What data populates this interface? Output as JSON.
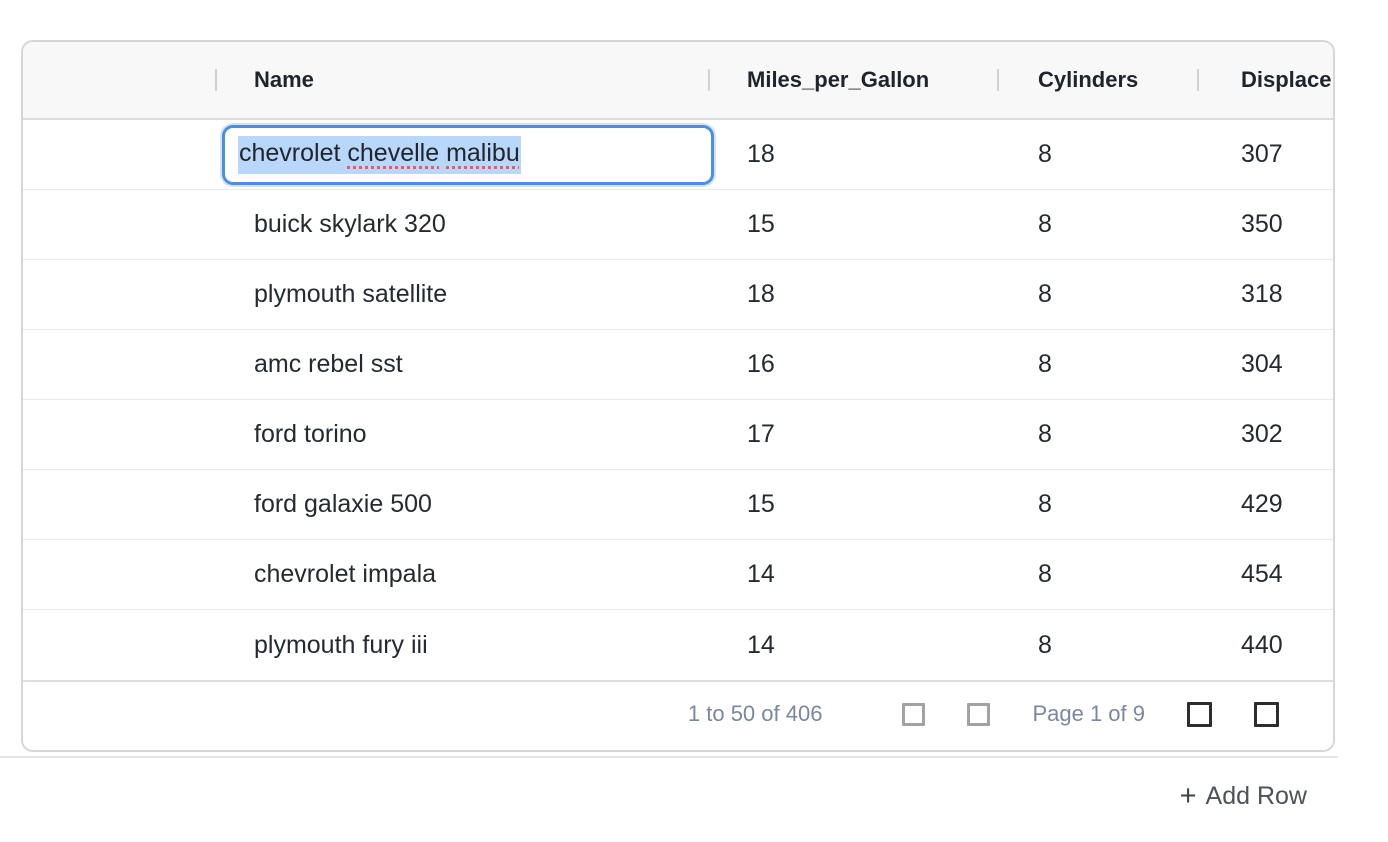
{
  "grid": {
    "columns": [
      {
        "label": ""
      },
      {
        "label": "Name"
      },
      {
        "label": "Miles_per_Gallon"
      },
      {
        "label": "Cylinders"
      },
      {
        "label": "Displacement"
      }
    ],
    "rows": [
      {
        "name": "chevrolet chevelle malibu",
        "miles_per_gallon": "18",
        "cylinders": "8",
        "displacement": "307",
        "editing": true
      },
      {
        "name": "buick skylark 320",
        "miles_per_gallon": "15",
        "cylinders": "8",
        "displacement": "350",
        "editing": false
      },
      {
        "name": "plymouth satellite",
        "miles_per_gallon": "18",
        "cylinders": "8",
        "displacement": "318",
        "editing": false
      },
      {
        "name": "amc rebel sst",
        "miles_per_gallon": "16",
        "cylinders": "8",
        "displacement": "304",
        "editing": false
      },
      {
        "name": "ford torino",
        "miles_per_gallon": "17",
        "cylinders": "8",
        "displacement": "302",
        "editing": false
      },
      {
        "name": "ford galaxie 500",
        "miles_per_gallon": "15",
        "cylinders": "8",
        "displacement": "429",
        "editing": false
      },
      {
        "name": "chevrolet impala",
        "miles_per_gallon": "14",
        "cylinders": "8",
        "displacement": "454",
        "editing": false
      },
      {
        "name": "plymouth fury iii",
        "miles_per_gallon": "14",
        "cylinders": "8",
        "displacement": "440",
        "editing": false
      }
    ]
  },
  "editor": {
    "value": "chevrolet chevelle malibu",
    "value_parts": [
      {
        "text": "chevrolet ",
        "misspelled": false
      },
      {
        "text": "chevelle",
        "misspelled": true
      },
      {
        "text": " ",
        "misspelled": false
      },
      {
        "text": "malibu",
        "misspelled": true
      }
    ]
  },
  "pagination": {
    "summary": "1 to 50 of 406",
    "page_label": "Page 1 of 9",
    "buttons": [
      {
        "name": "first-page",
        "enabled": false
      },
      {
        "name": "previous-page",
        "enabled": false
      },
      {
        "name": "next-page",
        "enabled": true
      },
      {
        "name": "last-page",
        "enabled": true
      }
    ]
  },
  "actions": {
    "add_row_label": "Add Row",
    "add_row_icon": "+"
  },
  "colors": {
    "editor_border": "#4a90e2",
    "text_selection": "#b9d7fb",
    "spellcheck_underline": "#e25f5f",
    "header_bg": "#f8f8f8",
    "pagination_text": "#7b87a0"
  }
}
